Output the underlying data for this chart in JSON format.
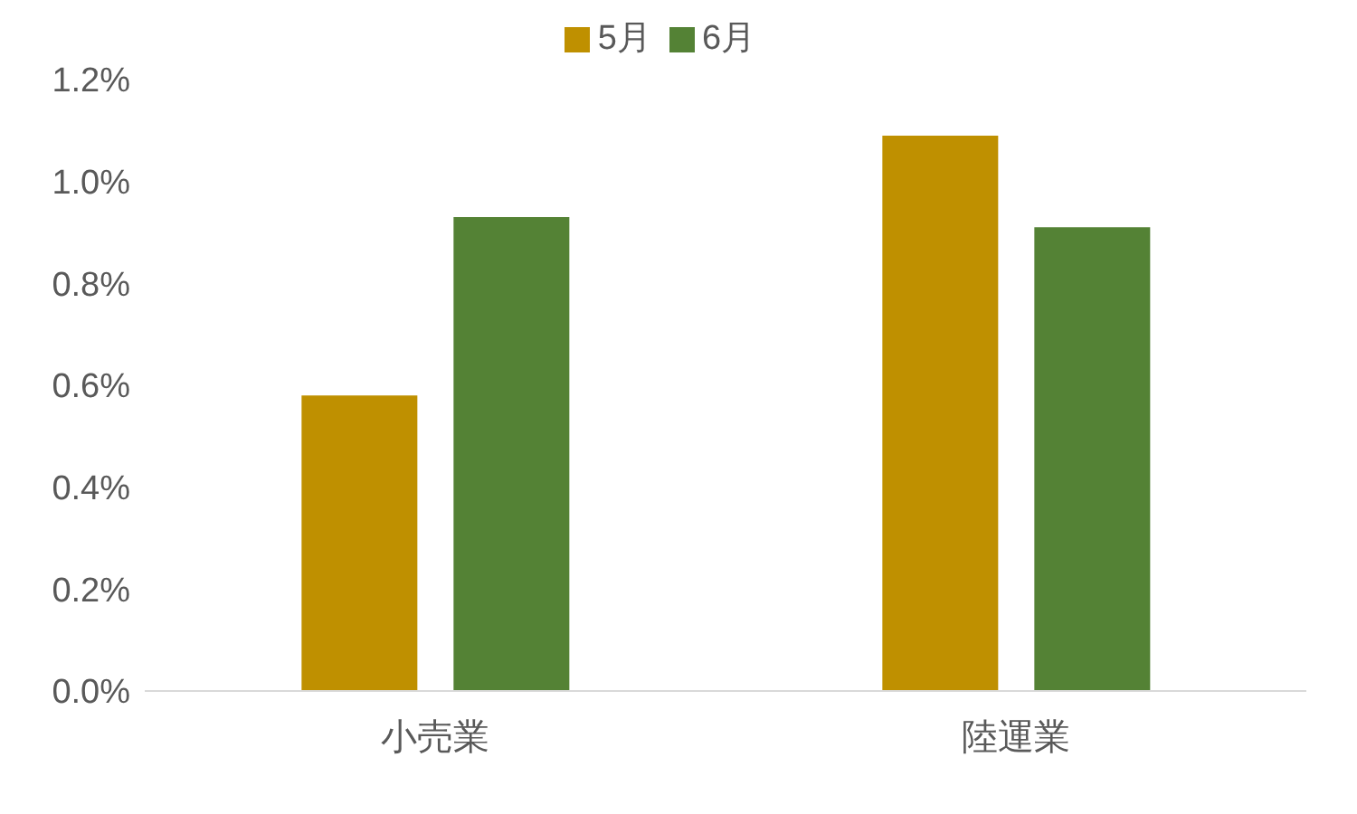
{
  "chart_data": {
    "type": "bar",
    "categories": [
      "小売業",
      "陸運業"
    ],
    "series": [
      {
        "name": "5月",
        "color": "#bf9000",
        "values": [
          0.58,
          1.09
        ]
      },
      {
        "name": "6月",
        "color": "#548235",
        "values": [
          0.93,
          0.91
        ]
      }
    ],
    "ylim": [
      0,
      1.2
    ],
    "yticks": [
      {
        "value": 0,
        "label": "0.0%"
      },
      {
        "value": 0.2,
        "label": "0.2%"
      },
      {
        "value": 0.4,
        "label": "0.4%"
      },
      {
        "value": 0.6,
        "label": "0.6%"
      },
      {
        "value": 0.8,
        "label": "0.8%"
      },
      {
        "value": 1.0,
        "label": "1.0%"
      },
      {
        "value": 1.2,
        "label": "1.2%"
      }
    ],
    "legend": "top",
    "grid": false
  }
}
